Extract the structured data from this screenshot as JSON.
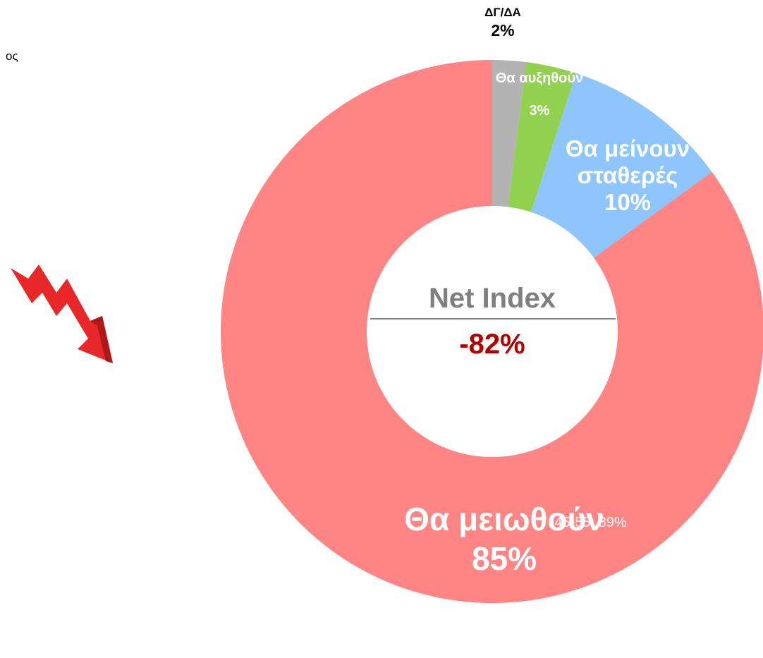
{
  "corner_text": "ος",
  "chart_data": {
    "type": "pie",
    "donut": true,
    "categories": [
      "ΔΓ/ΔΑ",
      "Θα αυξηθούν",
      "Θα μείνουν σταθερές",
      "Θα μειωθούν"
    ],
    "values": [
      2,
      3,
      10,
      85
    ],
    "value_labels": [
      "2%",
      "3%",
      "10%",
      "85%"
    ],
    "colors": [
      "#b3b3b3",
      "#92d050",
      "#8ec5fc",
      "#ff8585"
    ],
    "center_title": "Net Index",
    "center_value": -82,
    "center_value_label": "-82%"
  },
  "note": {
    "text": "45-55: 89%"
  }
}
